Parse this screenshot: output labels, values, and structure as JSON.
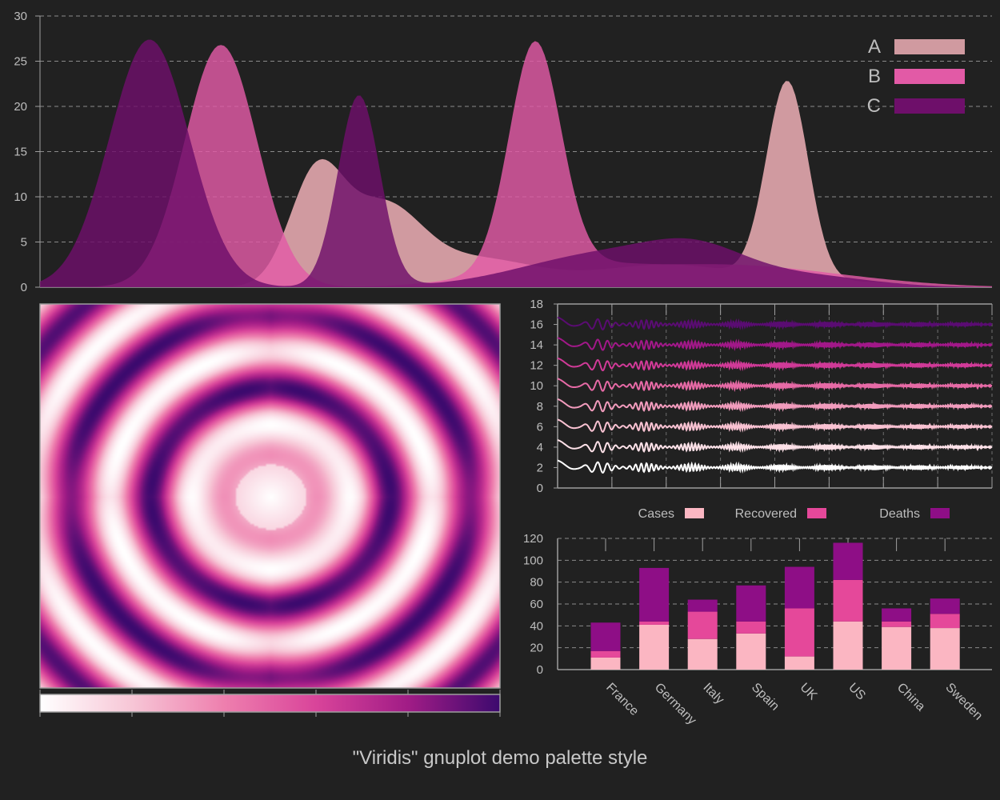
{
  "figure": {
    "caption": "\"Viridis\" gnuplot demo palette style",
    "background": "#212121",
    "text_color": "#bdbdbd",
    "axis_color": "#9e9e9e"
  },
  "chart_data": [
    {
      "type": "area",
      "title": "",
      "ylim": [
        0,
        30
      ],
      "yticks": [
        0,
        5,
        10,
        15,
        20,
        25,
        30
      ],
      "grid": true,
      "legend_placement": "top-right",
      "series": [
        {
          "name": "A",
          "color": "#d09aa0",
          "peaks": [
            {
              "x": 0.29,
              "h": 12.0,
              "w": 0.028
            },
            {
              "x": 0.36,
              "h": 8.5,
              "w": 0.04
            },
            {
              "x": 0.46,
              "h": 3.0,
              "w": 0.06
            },
            {
              "x": 0.785,
              "h": 22.0,
              "w": 0.022
            },
            {
              "x": 0.66,
              "h": 2.5,
              "w": 0.08
            },
            {
              "x": 0.87,
              "h": 0.5,
              "w": 0.05
            }
          ]
        },
        {
          "name": "B",
          "color": "#e25aa6",
          "opacity": 0.82,
          "peaks": [
            {
              "x": 0.19,
              "h": 26.8,
              "w": 0.038
            },
            {
              "x": 0.52,
              "h": 24.8,
              "w": 0.027
            },
            {
              "x": 0.55,
              "h": 2.5,
              "w": 0.08
            },
            {
              "x": 0.72,
              "h": 2.0,
              "w": 0.08
            },
            {
              "x": 0.84,
              "h": 0.8,
              "w": 0.08
            }
          ]
        },
        {
          "name": "C",
          "color": "#6e0f6a",
          "opacity": 0.82,
          "peaks": [
            {
              "x": 0.115,
              "h": 27.4,
              "w": 0.042
            },
            {
              "x": 0.335,
              "h": 21.2,
              "w": 0.022
            },
            {
              "x": 0.6,
              "h": 3.8,
              "w": 0.09
            },
            {
              "x": 0.69,
              "h": 2.6,
              "w": 0.05
            },
            {
              "x": 0.8,
              "h": 1.2,
              "w": 0.07
            }
          ]
        }
      ]
    },
    {
      "type": "heatmap",
      "title": "",
      "colorbar": {
        "ticks": 6,
        "palette": [
          "#ffffff",
          "#f7c6d6",
          "#ee7fae",
          "#d9449a",
          "#a11c86",
          "#3c0a6e"
        ]
      },
      "function": "concentric rings"
    },
    {
      "type": "line",
      "title": "",
      "ylim": [
        0,
        18
      ],
      "yticks": [
        0,
        2,
        4,
        6,
        8,
        10,
        12,
        14,
        16,
        18
      ],
      "grid": true,
      "series": [
        {
          "offset": 2,
          "color": "#ffffff"
        },
        {
          "offset": 4,
          "color": "#fde1e8"
        },
        {
          "offset": 6,
          "color": "#f9c2d2"
        },
        {
          "offset": 8,
          "color": "#f29cbd"
        },
        {
          "offset": 10,
          "color": "#e76aa6"
        },
        {
          "offset": 12,
          "color": "#d13a98"
        },
        {
          "offset": 14,
          "color": "#a21889"
        },
        {
          "offset": 16,
          "color": "#5a0c72"
        }
      ]
    },
    {
      "type": "bar",
      "stacked": true,
      "title": "",
      "ylim": [
        0,
        120
      ],
      "yticks": [
        0,
        20,
        40,
        60,
        80,
        100,
        120
      ],
      "grid": true,
      "legend_placement": "top",
      "categories": [
        "France",
        "Germany",
        "Italy",
        "Spain",
        "UK",
        "US",
        "China",
        "Sweden"
      ],
      "series": [
        {
          "name": "Cases",
          "color": "#fbb6c2",
          "values": [
            11,
            41,
            28,
            33,
            12,
            44,
            39,
            38
          ]
        },
        {
          "name": "Recovered",
          "color": "#e5489a",
          "values": [
            6,
            3,
            25,
            11,
            44,
            38,
            5,
            13
          ]
        },
        {
          "name": "Deaths",
          "color": "#8e0e86",
          "values": [
            26,
            49,
            11,
            33,
            38,
            34,
            12,
            14
          ]
        }
      ]
    }
  ]
}
